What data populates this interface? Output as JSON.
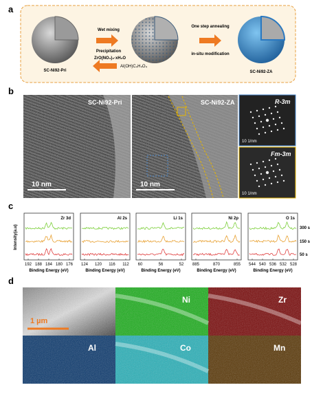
{
  "panel_a": {
    "label": "a",
    "left_name": "SC-Ni92-Pri",
    "step1": "Wet mixing",
    "step1_sub": "Precipitation",
    "reagent1": "ZrO(NO₃)₂·xH₂O",
    "reagent2": "Al(OH)C₄H₄O₄",
    "step2": "One step annealing",
    "step2_sub": "in-situ modification",
    "right_name": "SC-Ni92-ZA"
  },
  "panel_b": {
    "label": "b",
    "left_name": "SC-Ni92-Pri",
    "middle_name": "SC-Ni92-ZA",
    "left_scale": "10 nm",
    "middle_scale": "10 nm",
    "fft_top": "R-3m",
    "fft_top_scale": "10 1/nm",
    "fft_bottom": "Fm-3m",
    "fft_bottom_scale": "10 1/nm"
  },
  "panel_c": {
    "label": "c",
    "y_label": "Intensity(a.u)",
    "x_label": "Binding Energy (eV)",
    "plots": [
      {
        "title": "Zr 3d",
        "ticks": [
          "192",
          "188",
          "184",
          "180",
          "176"
        ]
      },
      {
        "title": "Al 2s",
        "ticks": [
          "124",
          "120",
          "116",
          "112"
        ]
      },
      {
        "title": "Li 1s",
        "ticks": [
          "60",
          "56",
          "52"
        ]
      },
      {
        "title": "Ni 2p",
        "ticks": [
          "885",
          "870",
          "855"
        ]
      },
      {
        "title": "O 1s",
        "ticks": [
          "544",
          "540",
          "536",
          "532",
          "528"
        ]
      }
    ],
    "legend": [
      "300 s",
      "150 s",
      "50 s"
    ]
  },
  "panel_d": {
    "label": "d",
    "scale": "1 µm",
    "maps": [
      "Ni",
      "Zr",
      "Al",
      "Co",
      "Mn"
    ]
  }
}
